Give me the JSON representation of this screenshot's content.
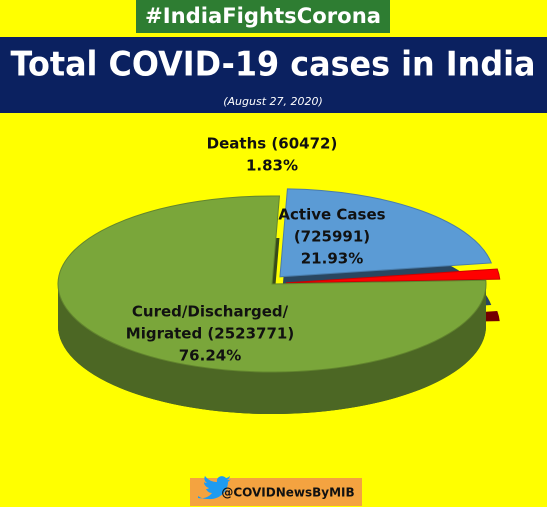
{
  "header": {
    "hashtag": "#IndiaFightsCorona"
  },
  "chart_data": {
    "type": "pie3d",
    "title": "Total COVID-19 cases in India",
    "subtitle": "(August 27, 2020)",
    "labels": [
      [
        "Active Cases",
        "(725991)"
      ],
      [
        "Deaths (60472)"
      ],
      [
        "Cured/Discharged/",
        "Migrated (2523771)"
      ]
    ],
    "values": [
      21.93,
      1.83,
      76.24
    ],
    "value_labels": [
      "21.93%",
      "1.83%",
      "76.24%"
    ],
    "colors": [
      "#5b9bd5",
      "#ff0000",
      "#7aa63a"
    ]
  },
  "footer": {
    "handle": "@COVIDNewsByMIB"
  }
}
